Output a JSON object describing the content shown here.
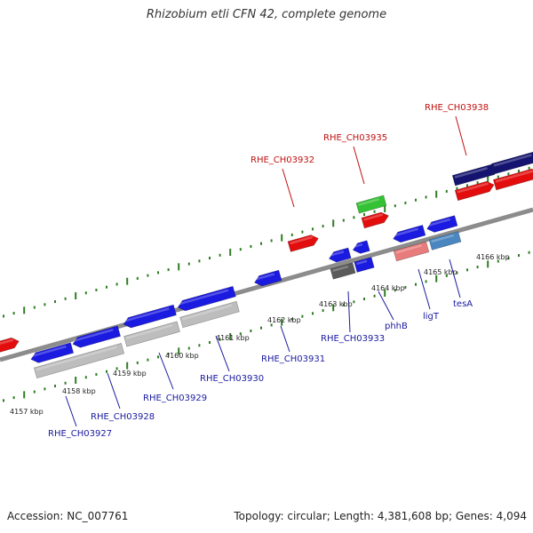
{
  "title": "Rhizobium etli CFN 42, complete genome",
  "footer": {
    "accession": "Accession: NC_007761",
    "stats": "Topology: circular; Length: 4,381,608 bp; Genes: 4,094"
  },
  "colors": {
    "backbone": "#8c8c8c",
    "tick": "#2e7d22",
    "forward_cds": "#e30d0d",
    "reverse_cds": "#1a1ae0",
    "navy_cds": "#141470",
    "rna_green": "#33c233",
    "pseudo_gray": "#bdbdbd",
    "dark_gray": "#5a5a5a",
    "pink": "#e87c7c",
    "steel_blue": "#4a86c0",
    "label_red": "#c01010",
    "label_blue": "#1a1aa0"
  },
  "kbp_labels": [
    "4157 kbp",
    "4158 kbp",
    "4159 kbp",
    "4160 kbp",
    "4161 kbp",
    "4162 kbp",
    "4163 kbp",
    "4164 kbp",
    "4165 kbp",
    "4166 kbp"
  ],
  "gene_labels_top": [
    "RHE_CH03932",
    "RHE_CH03935",
    "RHE_CH03938"
  ],
  "gene_labels_bottom": [
    "RHE_CH03927",
    "RHE_CH03928",
    "RHE_CH03929",
    "RHE_CH03930",
    "RHE_CH03931",
    "RHE_CH03933",
    "phhB",
    "ligT",
    "tesA"
  ]
}
